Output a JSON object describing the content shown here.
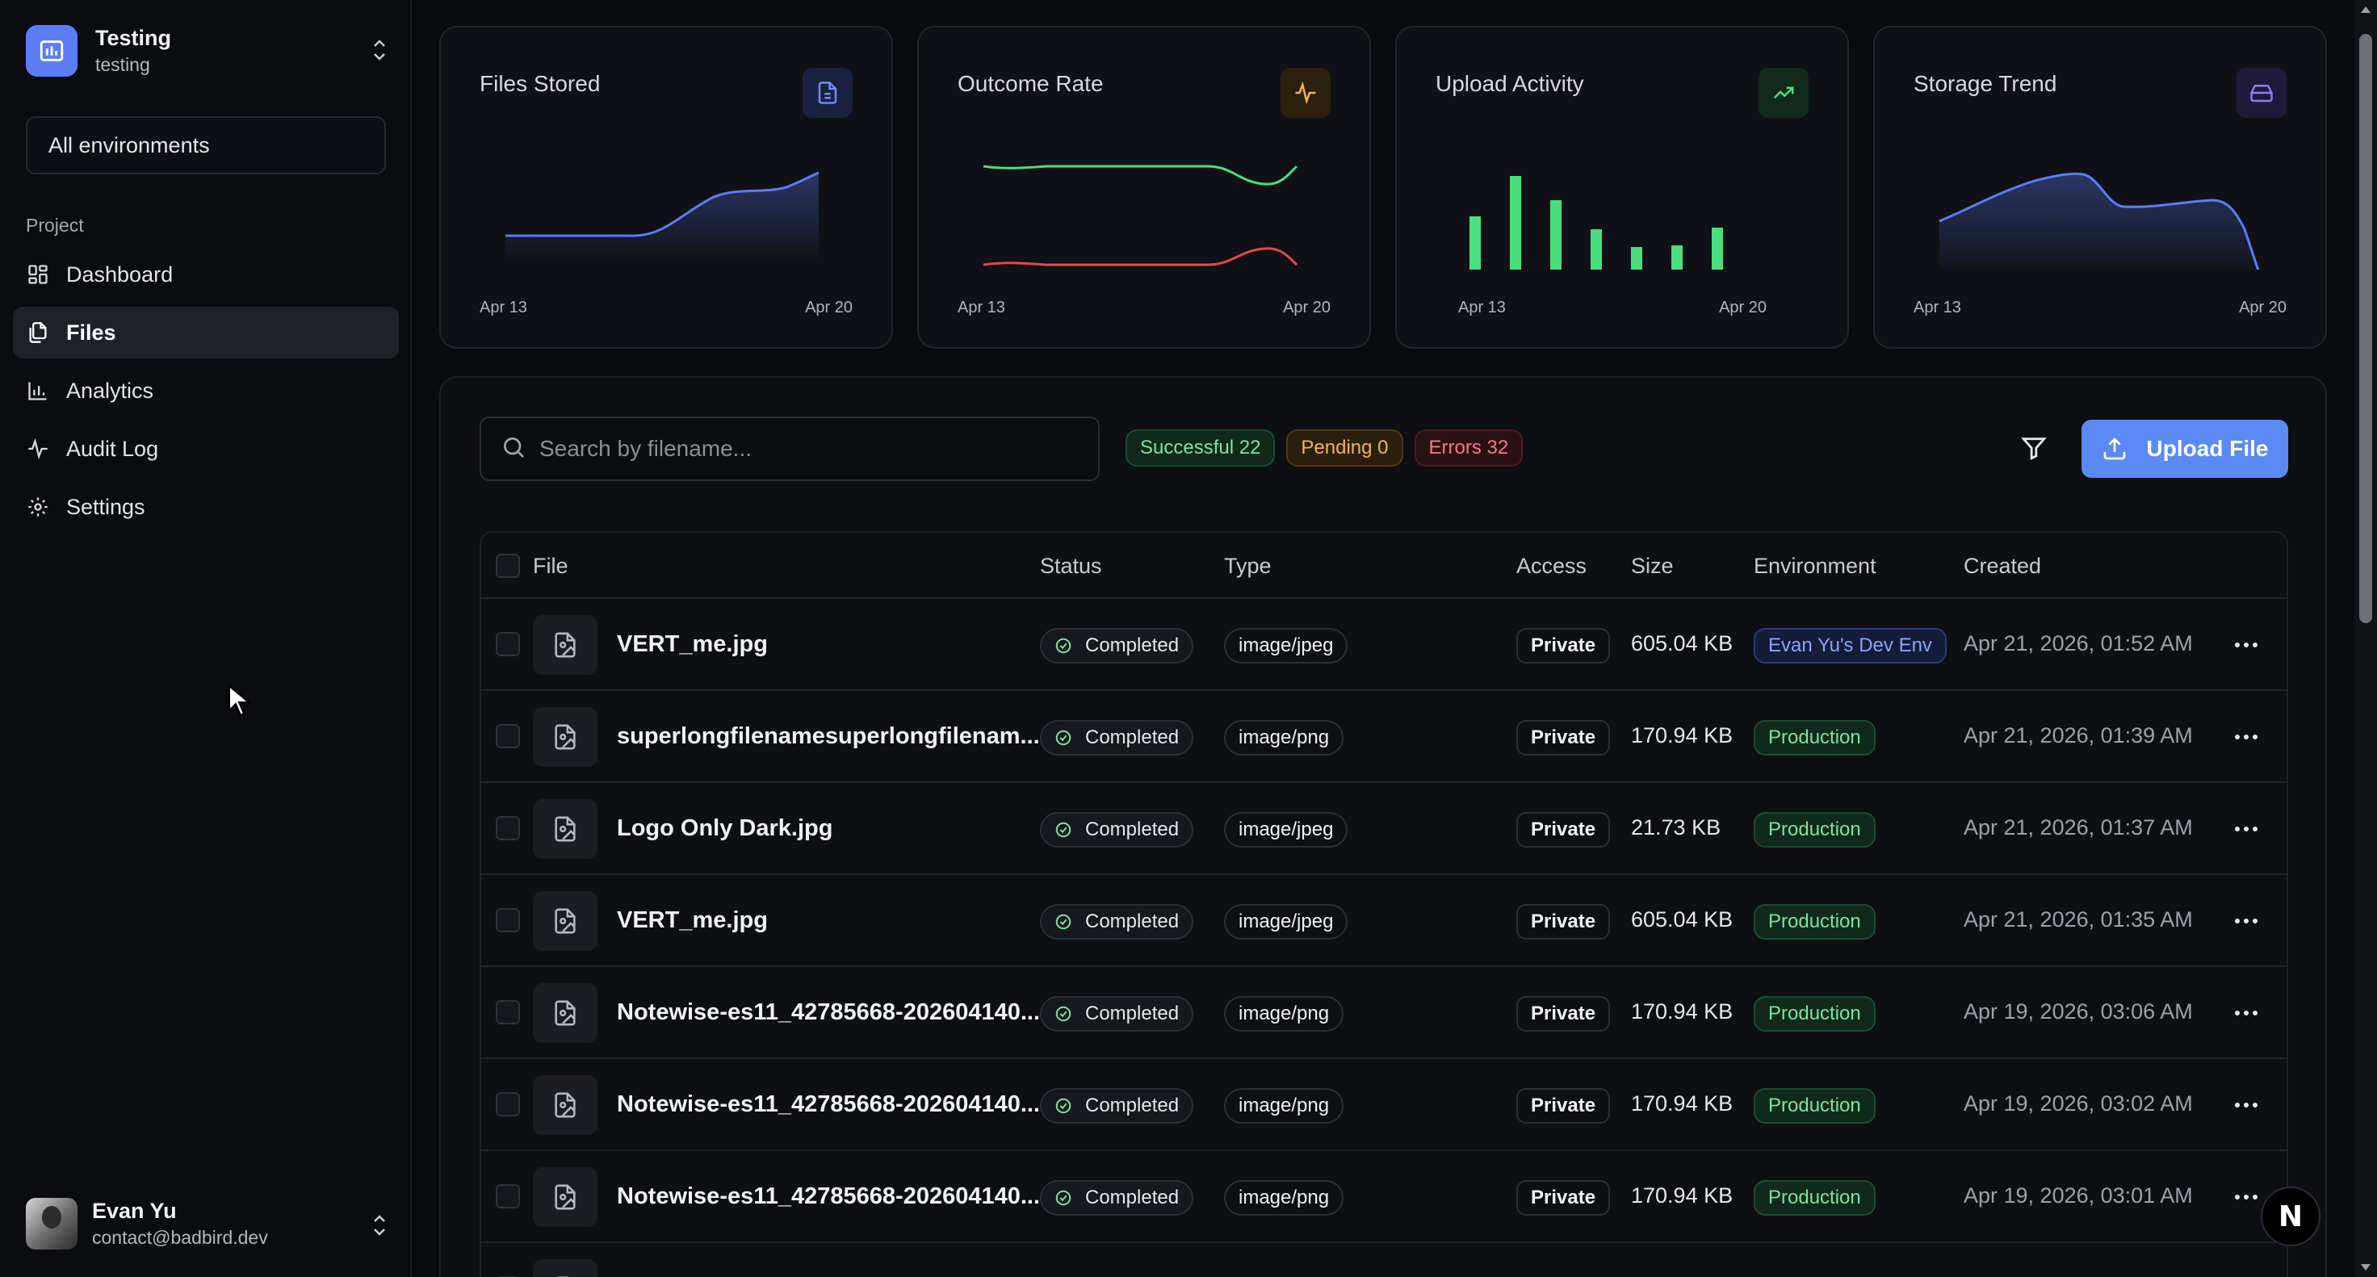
{
  "org": {
    "name": "Testing",
    "slug": "testing"
  },
  "environment_select": {
    "value": "All environments"
  },
  "sidebar": {
    "section_label": "Project",
    "items": [
      {
        "label": "Dashboard",
        "icon": "dashboard-icon",
        "active": false
      },
      {
        "label": "Files",
        "icon": "files-icon",
        "active": true
      },
      {
        "label": "Analytics",
        "icon": "bar-chart-icon",
        "active": false
      },
      {
        "label": "Audit Log",
        "icon": "activity-icon",
        "active": false
      },
      {
        "label": "Settings",
        "icon": "gear-icon",
        "active": false
      }
    ]
  },
  "user": {
    "name": "Evan Yu",
    "email": "contact@badbird.dev"
  },
  "cards": [
    {
      "title": "Files Stored",
      "date_start": "Apr 13",
      "date_end": "Apr 20",
      "icon": "file-icon",
      "color": "#5b7cf6"
    },
    {
      "title": "Outcome Rate",
      "date_start": "Apr 13",
      "date_end": "Apr 20",
      "icon": "pulse-icon",
      "color": "#f4b451"
    },
    {
      "title": "Upload Activity",
      "date_start": "Apr 13",
      "date_end": "Apr 20",
      "icon": "trending-up-icon",
      "color": "#4ade80"
    },
    {
      "title": "Storage Trend",
      "date_start": "Apr 13",
      "date_end": "Apr 20",
      "icon": "hard-drive-icon",
      "color": "#8b7cf6"
    }
  ],
  "search": {
    "placeholder": "Search by filename..."
  },
  "summary": {
    "successful": "Successful 22",
    "pending": "Pending 0",
    "errors": "Errors 32"
  },
  "upload_button": {
    "label": "Upload File"
  },
  "table": {
    "columns": [
      "File",
      "Status",
      "Type",
      "Access",
      "Size",
      "Environment",
      "Created"
    ],
    "rows": [
      {
        "file": "VERT_me.jpg",
        "status": "Completed",
        "type": "image/jpeg",
        "access": "Private",
        "size": "605.04 KB",
        "environment": "Evan Yu's Dev Env",
        "env_kind": "dev",
        "created": "Apr 21, 2026, 01:52 AM"
      },
      {
        "file": "superlongfilenamesuperlongfilenam...",
        "status": "Completed",
        "type": "image/png",
        "access": "Private",
        "size": "170.94 KB",
        "environment": "Production",
        "env_kind": "prod",
        "created": "Apr 21, 2026, 01:39 AM"
      },
      {
        "file": "Logo Only Dark.jpg",
        "status": "Completed",
        "type": "image/jpeg",
        "access": "Private",
        "size": "21.73 KB",
        "environment": "Production",
        "env_kind": "prod",
        "created": "Apr 21, 2026, 01:37 AM"
      },
      {
        "file": "VERT_me.jpg",
        "status": "Completed",
        "type": "image/jpeg",
        "access": "Private",
        "size": "605.04 KB",
        "environment": "Production",
        "env_kind": "prod",
        "created": "Apr 21, 2026, 01:35 AM"
      },
      {
        "file": "Notewise-es11_42785668-202604140...",
        "status": "Completed",
        "type": "image/png",
        "access": "Private",
        "size": "170.94 KB",
        "environment": "Production",
        "env_kind": "prod",
        "created": "Apr 19, 2026, 03:06 AM"
      },
      {
        "file": "Notewise-es11_42785668-202604140...",
        "status": "Completed",
        "type": "image/png",
        "access": "Private",
        "size": "170.94 KB",
        "environment": "Production",
        "env_kind": "prod",
        "created": "Apr 19, 2026, 03:02 AM"
      },
      {
        "file": "Notewise-es11_42785668-202604140...",
        "status": "Completed",
        "type": "image/png",
        "access": "Private",
        "size": "170.94 KB",
        "environment": "Production",
        "env_kind": "prod",
        "created": "Apr 19, 2026, 03:01 AM"
      },
      {
        "file": "",
        "status": "",
        "type": "",
        "access": "",
        "size": "",
        "environment": "",
        "env_kind": "prod",
        "created": ""
      }
    ]
  },
  "floating_badge": {
    "label": "N"
  }
}
